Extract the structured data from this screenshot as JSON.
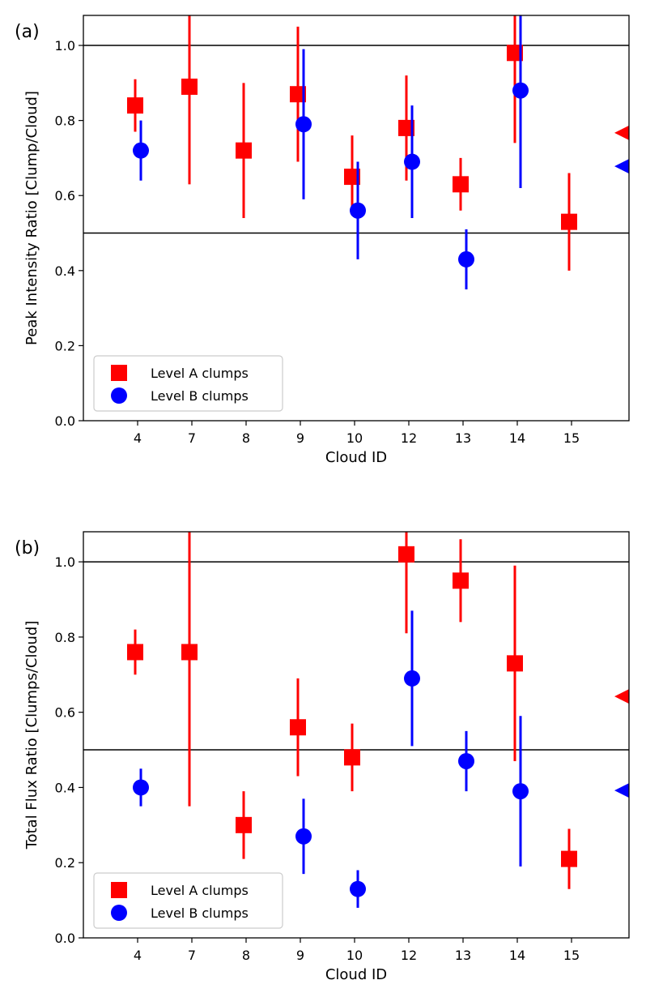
{
  "colors": {
    "level_a": "#ff0000",
    "level_b": "#0000ff",
    "axis": "#000000"
  },
  "chart_data": [
    {
      "type": "scatter",
      "panel_label": "(a)",
      "title": "",
      "xlabel": "Cloud ID",
      "ylabel": "Peak Intensity Ratio [Clump/Cloud]",
      "categories": [
        "4",
        "7",
        "8",
        "9",
        "10",
        "12",
        "13",
        "14",
        "15"
      ],
      "ylim": [
        0.0,
        1.08
      ],
      "yticks": [
        "0.0",
        "0.2",
        "0.4",
        "0.6",
        "0.8",
        "1.0"
      ],
      "reference_lines": [
        1.0,
        0.5
      ],
      "legend": [
        "Level A clumps",
        "Level B clumps"
      ],
      "legend_position": "lower-left",
      "series": [
        {
          "name": "Level A clumps",
          "marker": "square",
          "color": "#ff0000",
          "values": [
            0.84,
            0.89,
            0.72,
            0.87,
            0.65,
            0.78,
            0.63,
            0.98,
            0.53
          ],
          "err_low": [
            0.77,
            0.63,
            0.54,
            0.69,
            0.55,
            0.64,
            0.56,
            0.74,
            0.4
          ],
          "err_high": [
            0.91,
            1.08,
            0.9,
            1.05,
            0.76,
            0.92,
            0.7,
            1.08,
            0.66
          ],
          "mean": 0.767
        },
        {
          "name": "Level B clumps",
          "marker": "circle",
          "color": "#0000ff",
          "values": [
            0.72,
            null,
            null,
            0.79,
            0.56,
            0.69,
            0.43,
            0.88,
            null
          ],
          "err_low": [
            0.64,
            null,
            null,
            0.59,
            0.43,
            0.54,
            0.35,
            0.62,
            null
          ],
          "err_high": [
            0.8,
            null,
            null,
            0.99,
            0.69,
            0.84,
            0.51,
            1.08,
            null
          ],
          "mean": 0.678
        }
      ]
    },
    {
      "type": "scatter",
      "panel_label": "(b)",
      "title": "",
      "xlabel": "Cloud ID",
      "ylabel": "Total Flux Ratio [Clumps/Cloud]",
      "categories": [
        "4",
        "7",
        "8",
        "9",
        "10",
        "12",
        "13",
        "14",
        "15"
      ],
      "ylim": [
        0.0,
        1.08
      ],
      "yticks": [
        "0.0",
        "0.2",
        "0.4",
        "0.6",
        "0.8",
        "1.0"
      ],
      "reference_lines": [
        1.0,
        0.5
      ],
      "legend": [
        "Level A clumps",
        "Level B clumps"
      ],
      "legend_position": "lower-left",
      "series": [
        {
          "name": "Level A clumps",
          "marker": "square",
          "color": "#ff0000",
          "values": [
            0.76,
            0.76,
            0.3,
            0.56,
            0.48,
            1.02,
            0.95,
            0.73,
            0.21
          ],
          "err_low": [
            0.7,
            0.35,
            0.21,
            0.43,
            0.39,
            0.81,
            0.84,
            0.47,
            0.13
          ],
          "err_high": [
            0.82,
            1.08,
            0.39,
            0.69,
            0.57,
            1.08,
            1.06,
            0.99,
            0.29
          ],
          "mean": 0.642
        },
        {
          "name": "Level B clumps",
          "marker": "circle",
          "color": "#0000ff",
          "values": [
            0.4,
            null,
            null,
            0.27,
            0.13,
            0.69,
            0.47,
            0.39,
            null
          ],
          "err_low": [
            0.35,
            null,
            null,
            0.17,
            0.08,
            0.51,
            0.39,
            0.19,
            null
          ],
          "err_high": [
            0.45,
            null,
            null,
            0.37,
            0.18,
            0.87,
            0.55,
            0.59,
            null
          ],
          "mean": 0.392
        }
      ]
    }
  ]
}
